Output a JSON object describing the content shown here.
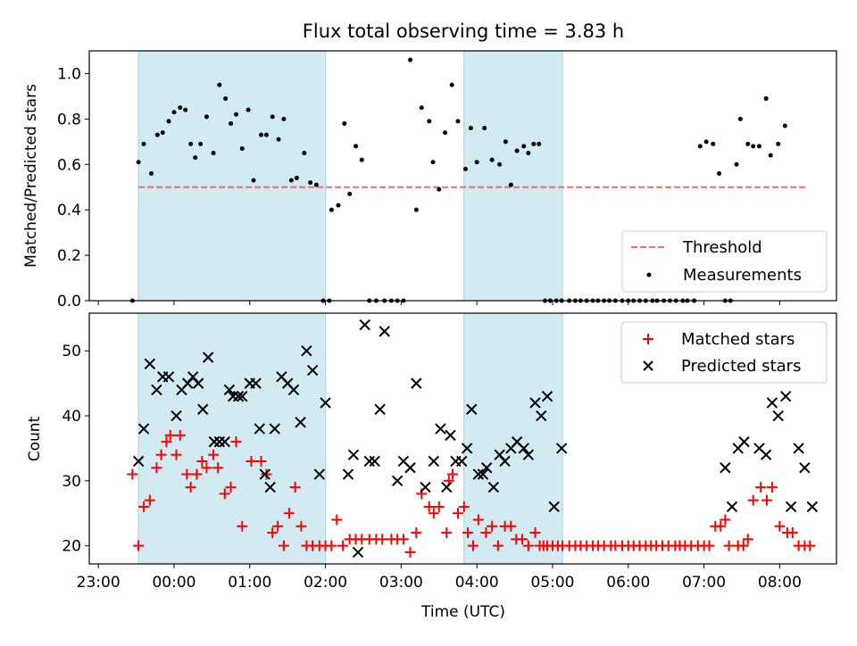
{
  "colors": {
    "shade": "#add8e6",
    "threshold": "#ff6666",
    "matched": "#ff0000",
    "predicted": "#000000",
    "measurement": "#000000"
  },
  "x_ticks": [
    "23:00",
    "00:00",
    "01:00",
    "02:00",
    "03:00",
    "04:00",
    "05:00",
    "06:00",
    "07:00",
    "08:00"
  ],
  "chart_data": [
    {
      "type": "scatter",
      "title": "Flux total observing time = 3.83 h",
      "xlabel": "",
      "ylabel": "Matched/Predicted stars",
      "xlim_hours_from_2300": [
        -0.12,
        9.75
      ],
      "ylim": [
        0,
        1.1
      ],
      "y_ticks": [
        "0.0",
        "0.2",
        "0.4",
        "0.6",
        "0.8",
        "1.0"
      ],
      "shaded_intervals_hours_from_2300": [
        [
          0.53,
          3.0
        ],
        [
          4.83,
          6.13
        ]
      ],
      "legend": {
        "position": "lower-right",
        "entries": [
          "Threshold",
          "Measurements"
        ]
      },
      "threshold": {
        "name": "Threshold",
        "value": 0.5,
        "x_range_hours_from_2300": [
          0.53,
          9.35
        ]
      },
      "measurements": {
        "name": "Measurements",
        "x_hours_from_2300": [
          0.45,
          0.53,
          0.6,
          0.7,
          0.78,
          0.85,
          0.93,
          1.0,
          1.08,
          1.15,
          1.22,
          1.28,
          1.35,
          1.43,
          1.52,
          1.6,
          1.68,
          1.75,
          1.82,
          1.9,
          1.98,
          2.05,
          2.15,
          2.22,
          2.3,
          2.38,
          2.45,
          2.55,
          2.62,
          2.72,
          2.8,
          2.88,
          2.97,
          3.05,
          3.08,
          3.17,
          3.25,
          3.32,
          3.4,
          3.48,
          3.58,
          3.67,
          3.78,
          3.87,
          3.95,
          4.03,
          4.12,
          4.2,
          4.27,
          4.37,
          4.42,
          4.5,
          4.58,
          4.67,
          4.75,
          4.85,
          4.92,
          5.0,
          5.1,
          5.2,
          5.3,
          5.38,
          5.45,
          5.53,
          5.62,
          5.68,
          5.75,
          5.82,
          5.9,
          5.97,
          6.05,
          6.12,
          6.22,
          6.3,
          6.37,
          6.45,
          6.53,
          6.6,
          6.68,
          6.75,
          6.83,
          6.92,
          7.0,
          7.07,
          7.15,
          7.23,
          7.32,
          7.38,
          7.47,
          7.55,
          7.63,
          7.72,
          7.78,
          7.87,
          7.95,
          8.03,
          8.12,
          8.2,
          8.28,
          8.35,
          8.43,
          8.48,
          8.58,
          8.65,
          8.73,
          8.82,
          8.88,
          8.98,
          9.07,
          9.13,
          9.2,
          9.27,
          9.33,
          9.4
        ],
        "values": [
          0.0,
          0.61,
          0.69,
          0.56,
          0.73,
          0.74,
          0.79,
          0.83,
          0.85,
          0.84,
          0.69,
          0.63,
          0.69,
          0.81,
          0.65,
          0.95,
          0.89,
          0.78,
          0.82,
          0.67,
          0.84,
          0.53,
          0.73,
          0.73,
          0.81,
          0.71,
          0.8,
          0.53,
          0.54,
          0.65,
          0.52,
          0.51,
          0.0,
          0.0,
          0.4,
          0.42,
          0.78,
          0.47,
          0.68,
          0.62,
          0.0,
          0.0,
          0.0,
          0.0,
          0.0,
          0.0,
          1.06,
          0.4,
          0.85,
          0.79,
          0.61,
          0.49,
          0.74,
          0.95,
          0.79,
          0.58,
          0.76,
          0.61,
          0.76,
          0.62,
          0.6,
          0.7,
          0.51,
          0.66,
          0.68,
          0.65,
          0.69,
          0.69,
          0.0,
          0.0,
          0.0,
          0.0,
          0.0,
          0.0,
          0.0,
          0.0,
          0.0,
          0.0,
          0.0,
          0.0,
          0.0,
          0.0,
          0.0,
          0.0,
          0.0,
          0.0,
          0.0,
          0.0,
          0.0,
          0.0,
          0.0,
          0.0,
          0.0,
          0.0,
          0.68,
          0.7,
          0.69,
          0.56,
          0.0,
          0.0,
          0.6,
          0.8,
          0.69,
          0.68,
          0.68,
          0.89,
          0.64,
          0.69,
          0.77
        ]
      }
    },
    {
      "type": "scatter",
      "title": "",
      "xlabel": "Time (UTC)",
      "ylabel": "Count",
      "xlim_hours_from_2300": [
        -0.12,
        9.75
      ],
      "ylim": [
        17.2,
        55.8
      ],
      "y_ticks": [
        20,
        30,
        40,
        50
      ],
      "shaded_intervals_hours_from_2300": [
        [
          0.53,
          3.0
        ],
        [
          4.83,
          6.13
        ]
      ],
      "legend": {
        "position": "upper-right",
        "entries": [
          "Matched stars",
          "Predicted stars"
        ]
      },
      "series": [
        {
          "name": "Matched stars",
          "x_hours_from_2300": [
            0.45,
            0.53,
            0.6,
            0.68,
            0.77,
            0.83,
            0.9,
            0.95,
            1.03,
            1.08,
            1.17,
            1.22,
            1.3,
            1.37,
            1.43,
            1.52,
            1.58,
            1.67,
            1.75,
            1.82,
            1.9,
            2.02,
            2.15,
            2.22,
            2.3,
            2.37,
            2.45,
            2.52,
            2.6,
            2.68,
            2.75,
            2.83,
            2.92,
            3.0,
            3.08,
            3.15,
            3.23,
            3.32,
            3.4,
            3.48,
            3.58,
            3.67,
            3.75,
            3.87,
            3.95,
            4.03,
            4.12,
            4.2,
            4.27,
            4.37,
            4.43,
            4.5,
            4.6,
            4.63,
            4.68,
            4.75,
            4.83,
            4.88,
            4.95,
            5.02,
            5.12,
            5.2,
            5.28,
            5.37,
            5.45,
            5.52,
            5.6,
            5.68,
            5.77,
            5.83,
            5.88,
            5.93,
            6.0,
            6.07,
            6.13,
            6.22,
            6.3,
            6.37,
            6.45,
            6.53,
            6.6,
            6.68,
            6.77,
            6.83,
            6.92,
            7.0,
            7.07,
            7.15,
            7.23,
            7.3,
            7.37,
            7.45,
            7.53,
            7.62,
            7.68,
            7.75,
            7.83,
            7.92,
            8.0,
            8.07,
            8.15,
            8.22,
            8.28,
            8.33,
            8.45,
            8.52,
            8.58,
            8.65,
            8.75,
            8.83,
            8.9,
            9.0,
            9.1,
            9.17,
            9.25,
            9.33,
            9.4
          ],
          "values": [
            31,
            20,
            26,
            27,
            32,
            34,
            36,
            37,
            34,
            37,
            31,
            29,
            31,
            33,
            32,
            34,
            32,
            28,
            29,
            36,
            23,
            33,
            33,
            31,
            22,
            23,
            20,
            25,
            29,
            23,
            20,
            20,
            20,
            20,
            20,
            24,
            20,
            21,
            21,
            21,
            21,
            21,
            21,
            21,
            21,
            21,
            19,
            22,
            28,
            26,
            25,
            26,
            22,
            30,
            31,
            25,
            26,
            22,
            20,
            24,
            22,
            23,
            20,
            23,
            23,
            21,
            21,
            20,
            22,
            20,
            20,
            20,
            20,
            20,
            20,
            20,
            20,
            20,
            20,
            20,
            20,
            20,
            20,
            20,
            20,
            20,
            20,
            20,
            20,
            20,
            20,
            20,
            20,
            20,
            20,
            20,
            20,
            20,
            20,
            20,
            23,
            23,
            24,
            20,
            20,
            20,
            21,
            27,
            29,
            27,
            29,
            23,
            22,
            22,
            20,
            20,
            20
          ]
        },
        {
          "name": "Predicted stars",
          "x_hours_from_2300": [
            0.53,
            0.6,
            0.68,
            0.77,
            0.85,
            0.93,
            1.03,
            1.1,
            1.18,
            1.25,
            1.32,
            1.38,
            1.45,
            1.53,
            1.6,
            1.67,
            1.73,
            1.78,
            1.85,
            1.9,
            2.0,
            2.08,
            2.13,
            2.2,
            2.27,
            2.33,
            2.42,
            2.5,
            2.58,
            2.67,
            2.75,
            2.83,
            2.92,
            3.0,
            3.3,
            3.37,
            3.43,
            3.52,
            3.58,
            3.65,
            3.72,
            3.78,
            3.95,
            4.03,
            4.12,
            4.2,
            4.32,
            4.43,
            4.52,
            4.6,
            4.65,
            4.72,
            4.8,
            4.87,
            4.93,
            5.02,
            5.08,
            5.13,
            5.22,
            5.3,
            5.37,
            5.45,
            5.53,
            5.62,
            5.68,
            5.77,
            5.85,
            5.93,
            6.02,
            6.12,
            8.28,
            8.37,
            8.45,
            8.53,
            8.73,
            8.82,
            8.9,
            8.98,
            9.08,
            9.15,
            9.25,
            9.33,
            9.43
          ],
          "values": [
            33,
            38,
            48,
            44,
            46,
            46,
            40,
            44,
            45,
            46,
            45,
            41,
            49,
            36,
            36,
            36,
            44,
            43,
            43,
            43,
            45,
            45,
            38,
            31,
            29,
            38,
            46,
            45,
            44,
            39,
            50,
            47,
            31,
            42,
            31,
            34,
            19,
            54,
            33,
            33,
            41,
            53,
            30,
            33,
            32,
            45,
            29,
            33,
            38,
            29,
            37,
            33,
            33,
            35,
            41,
            31,
            31,
            32,
            29,
            34,
            33,
            35,
            36,
            35,
            34,
            42,
            40,
            43,
            26,
            35,
            32,
            26,
            35,
            36,
            35,
            34,
            42,
            40,
            43,
            26,
            35,
            32,
            26
          ],
          "note": "x/values for predicted are paired in order"
        }
      ]
    }
  ]
}
